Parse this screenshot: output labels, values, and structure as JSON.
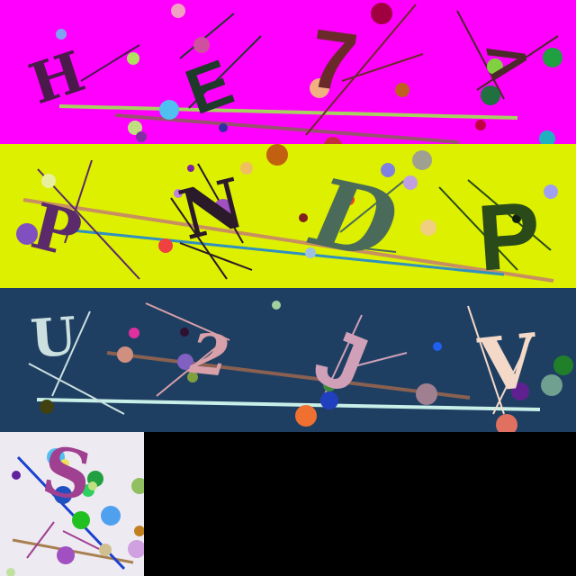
{
  "rows": [
    {
      "background": "#ff00ff",
      "glyphs": [
        {
          "char": "H",
          "color": "#4a1a4a"
        },
        {
          "char": "E",
          "color": "#1f3a2a"
        },
        {
          "char": "7",
          "color": "#6b2a2a"
        },
        {
          "char": ">",
          "color": "#4a2a2a"
        }
      ]
    },
    {
      "background": "#dcf000",
      "glyphs": [
        {
          "char": "P",
          "color": "#5a2a6a"
        },
        {
          "char": "N",
          "color": "#2a1a2a"
        },
        {
          "char": "D",
          "color": "#4a6a5a"
        },
        {
          "char": "P",
          "color": "#2a4a1a"
        }
      ]
    },
    {
      "background": "#1f3f62",
      "glyphs": [
        {
          "char": "U",
          "color": "#cce0e0"
        },
        {
          "char": "2",
          "color": "#d8a0a8"
        },
        {
          "char": "J",
          "color": "#d0a0b8"
        },
        {
          "char": "V",
          "color": "#f4d8c8"
        }
      ]
    }
  ],
  "tile": {
    "background": "#eeeaf2",
    "glyph": {
      "char": "S",
      "color": "#a04090"
    }
  },
  "blank_color": "#000000"
}
